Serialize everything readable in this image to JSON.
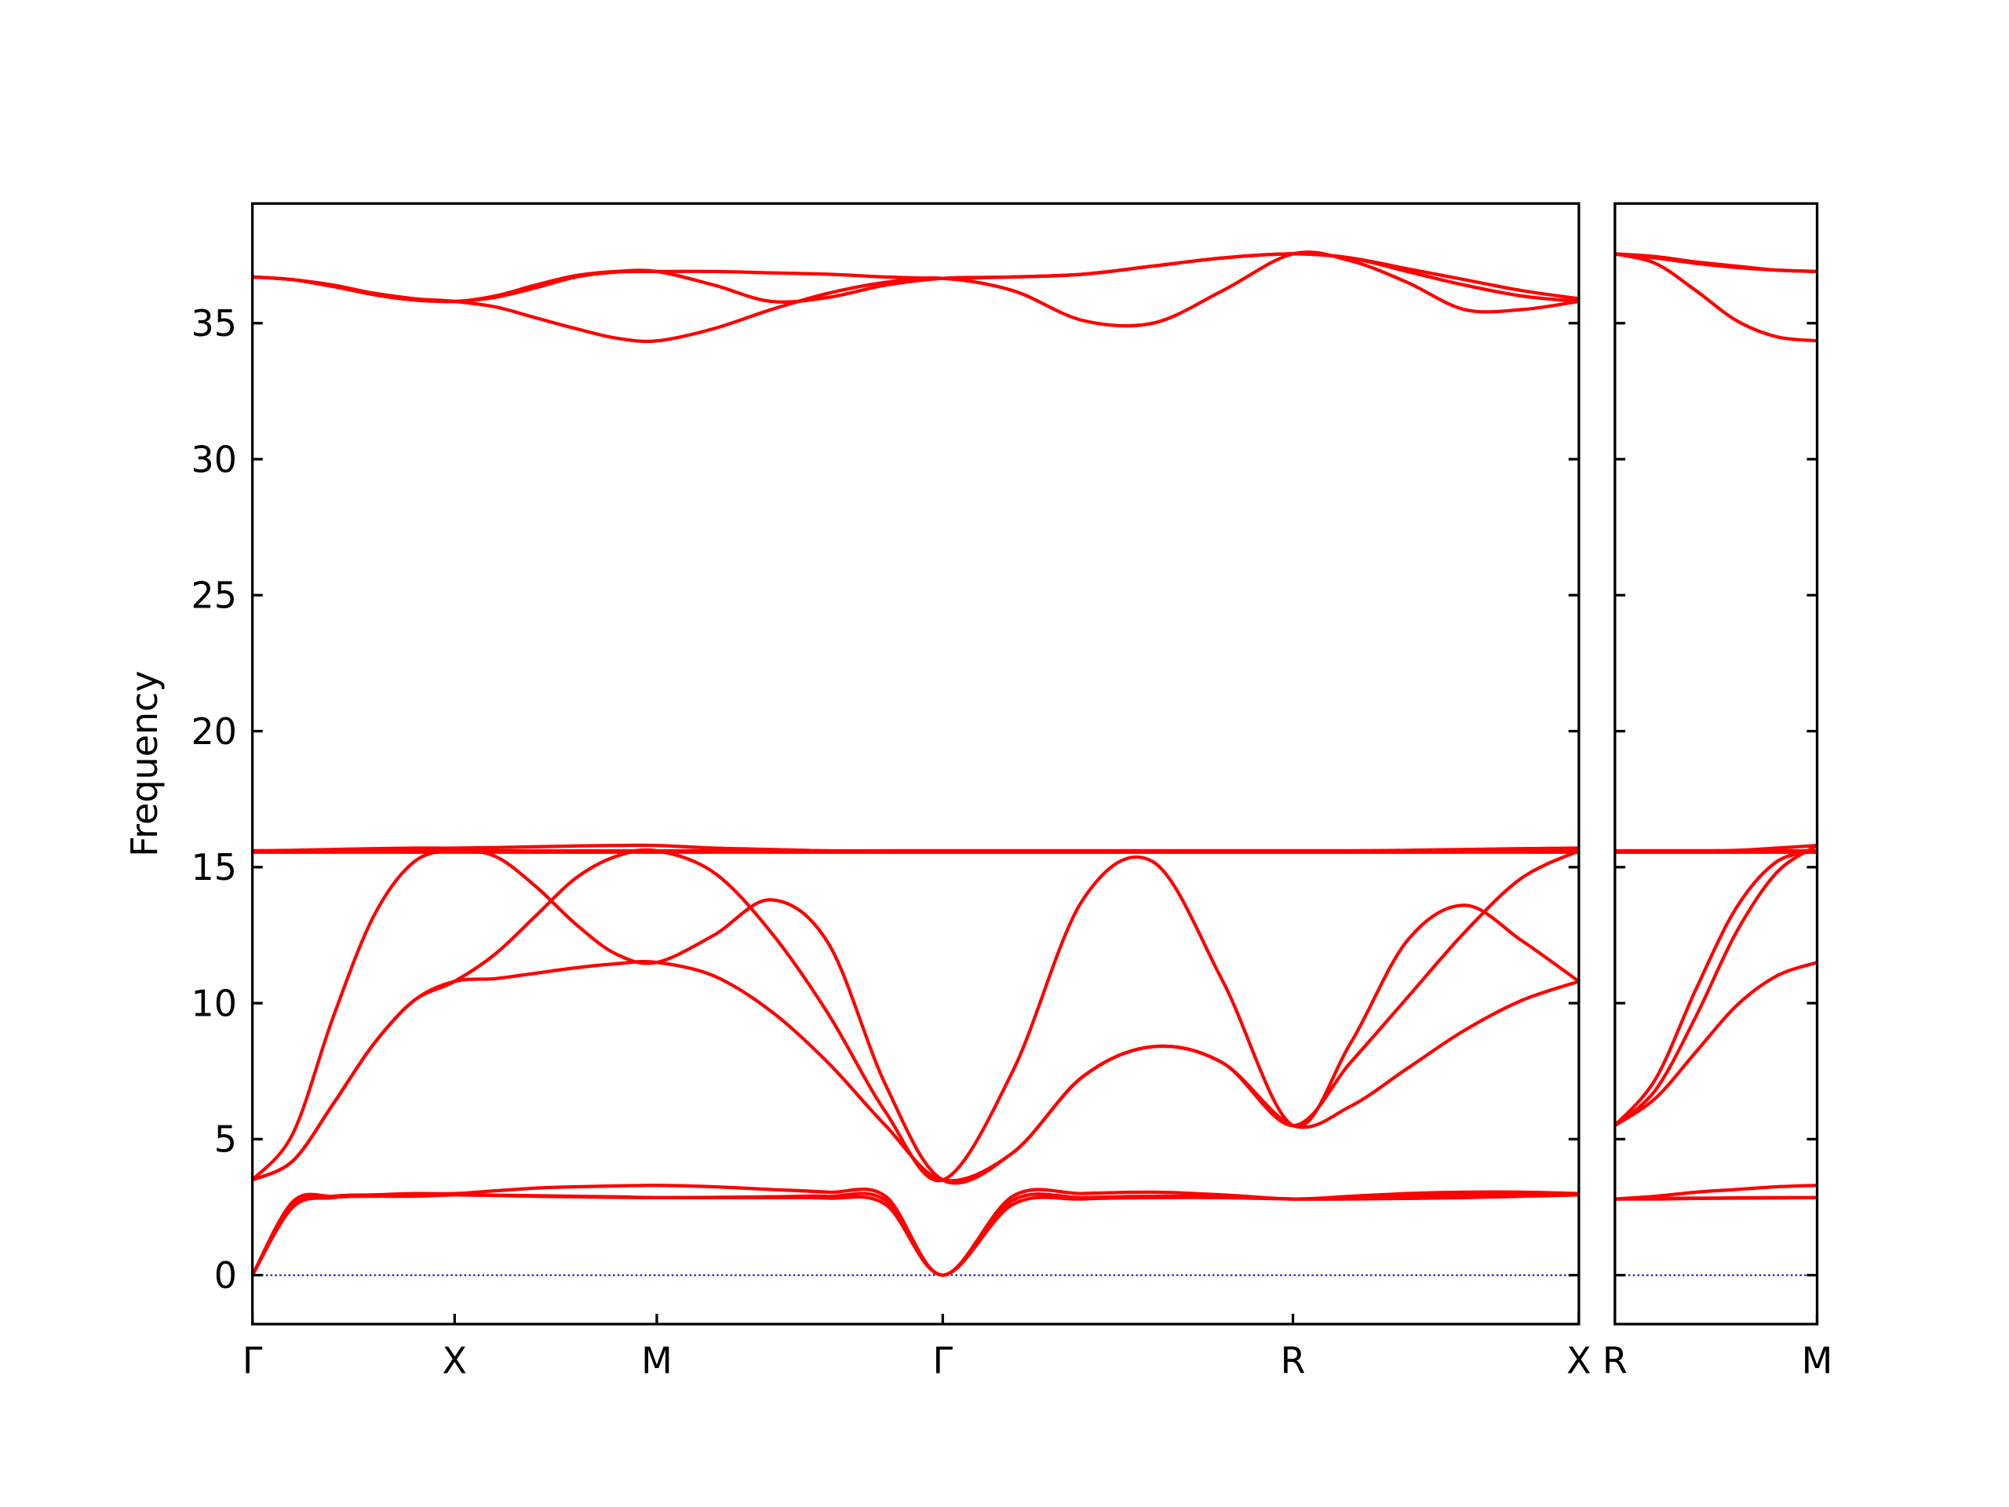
{
  "chart_data": [
    {
      "type": "line",
      "ylabel": "Frequency",
      "color": "#ff0000",
      "x": [
        0,
        0.1,
        0.2,
        0.3,
        0.4,
        0.5,
        0.6,
        0.7,
        0.8,
        0.9,
        1.0,
        1.1414,
        1.2828,
        1.4243,
        1.5657,
        1.7071,
        1.8803,
        2.0535,
        2.2267,
        2.3999,
        2.5731,
        2.7145,
        2.8559,
        2.9974,
        3.1388,
        3.2802
      ],
      "xlim": [
        0,
        3.2802
      ],
      "xticks": [
        {
          "value": 0,
          "label": "Γ"
        },
        {
          "value": 0.5,
          "label": "X"
        },
        {
          "value": 1.0,
          "label": "M"
        },
        {
          "value": 1.7071,
          "label": "Γ"
        },
        {
          "value": 2.5731,
          "label": "R"
        },
        {
          "value": 3.2802,
          "label": "X"
        }
      ],
      "ylim": [
        -1.8,
        39.4
      ],
      "yticks": [
        0,
        5,
        10,
        15,
        20,
        25,
        30,
        35
      ],
      "ytick_labels": true,
      "hline": {
        "y": 0,
        "color": "#0000cc"
      },
      "series": [
        {
          "values": [
            0,
            2.5,
            2.85,
            2.9,
            2.9,
            2.95,
            2.93,
            2.9,
            2.88,
            2.86,
            2.85,
            2.85,
            2.85,
            2.83,
            2.6,
            0,
            2.6,
            2.8,
            2.85,
            2.85,
            2.8,
            2.8,
            2.82,
            2.85,
            2.9,
            2.95
          ]
        },
        {
          "values": [
            0,
            2.6,
            2.9,
            2.95,
            2.95,
            2.95,
            2.94,
            2.92,
            2.9,
            2.88,
            2.85,
            2.86,
            2.88,
            2.9,
            2.75,
            0,
            2.75,
            2.85,
            2.9,
            2.88,
            2.8,
            2.85,
            2.9,
            2.95,
            2.95,
            2.95
          ]
        },
        {
          "values": [
            0,
            2.7,
            2.9,
            2.95,
            3.0,
            3.0,
            3.1,
            3.2,
            3.25,
            3.28,
            3.3,
            3.25,
            3.15,
            3.05,
            2.9,
            0,
            2.9,
            3.0,
            3.05,
            2.95,
            2.8,
            2.9,
            3.0,
            3.05,
            3.05,
            3.0
          ]
        },
        {
          "values": [
            3.5,
            4.2,
            6.3,
            8.5,
            10.1,
            10.8,
            10.9,
            11.1,
            11.3,
            11.45,
            11.5,
            11.0,
            9.7,
            7.8,
            5.5,
            3.5,
            4.5,
            7.3,
            8.4,
            7.8,
            5.5,
            6.2,
            7.6,
            9.0,
            10.1,
            10.8
          ]
        },
        {
          "values": [
            3.5,
            4.2,
            6.3,
            8.5,
            10.1,
            10.8,
            11.8,
            13.2,
            14.6,
            15.4,
            15.6,
            14.8,
            12.6,
            9.6,
            6.0,
            3.5,
            7.5,
            13.8,
            15.2,
            10.8,
            5.5,
            8.5,
            12.3,
            13.6,
            12.3,
            10.8
          ]
        },
        {
          "values": [
            3.5,
            5.2,
            9.5,
            13.2,
            15.2,
            15.6,
            15.4,
            14.3,
            12.9,
            11.8,
            11.5,
            12.5,
            13.8,
            12.2,
            7.0,
            3.5,
            4.5,
            7.3,
            8.4,
            7.8,
            5.5,
            7.8,
            10.2,
            12.6,
            14.6,
            15.6
          ]
        },
        {
          "values": [
            15.6,
            15.6,
            15.6,
            15.6,
            15.6,
            15.6,
            15.6,
            15.6,
            15.6,
            15.6,
            15.6,
            15.6,
            15.6,
            15.6,
            15.6,
            15.6,
            15.6,
            15.6,
            15.6,
            15.6,
            15.6,
            15.6,
            15.6,
            15.6,
            15.6,
            15.6
          ]
        },
        {
          "values": [
            15.6,
            15.62,
            15.65,
            15.68,
            15.7,
            15.7,
            15.72,
            15.75,
            15.78,
            15.8,
            15.8,
            15.7,
            15.65,
            15.6,
            15.6,
            15.6,
            15.6,
            15.6,
            15.6,
            15.6,
            15.6,
            15.6,
            15.62,
            15.65,
            15.68,
            15.7
          ]
        },
        {
          "values": [
            15.55,
            15.55,
            15.55,
            15.55,
            15.55,
            15.55,
            15.55,
            15.55,
            15.55,
            15.55,
            15.55,
            15.55,
            15.55,
            15.55,
            15.55,
            15.55,
            15.55,
            15.55,
            15.55,
            15.55,
            15.55,
            15.55,
            15.55,
            15.55,
            15.55,
            15.55
          ]
        },
        {
          "values": [
            36.7,
            36.6,
            36.35,
            36.1,
            35.9,
            35.8,
            35.6,
            35.2,
            34.8,
            34.45,
            34.35,
            34.8,
            35.5,
            36.1,
            36.5,
            36.65,
            36.2,
            35.1,
            35.0,
            36.2,
            37.55,
            37.3,
            36.5,
            35.5,
            35.5,
            35.8
          ]
        },
        {
          "values": [
            36.7,
            36.6,
            36.4,
            36.1,
            35.9,
            35.8,
            36.0,
            36.4,
            36.75,
            36.9,
            36.9,
            36.4,
            35.8,
            35.95,
            36.4,
            36.65,
            36.7,
            36.8,
            37.1,
            37.4,
            37.55,
            37.4,
            37.0,
            36.6,
            36.2,
            35.9
          ]
        },
        {
          "values": [
            36.7,
            36.6,
            36.35,
            36.05,
            35.85,
            35.8,
            35.95,
            36.3,
            36.7,
            36.88,
            36.9,
            36.9,
            36.85,
            36.8,
            36.7,
            36.65,
            36.7,
            36.8,
            37.1,
            37.4,
            37.55,
            37.4,
            36.9,
            36.4,
            36.0,
            35.8
          ]
        }
      ]
    },
    {
      "type": "line",
      "color": "#ff0000",
      "x": [
        0,
        0.1,
        0.2,
        0.3,
        0.4,
        0.5
      ],
      "xlim": [
        0,
        0.5
      ],
      "xticks": [
        {
          "value": 0,
          "label": "R"
        },
        {
          "value": 0.5,
          "label": "M"
        }
      ],
      "ylim": [
        -1.8,
        39.4
      ],
      "yticks": [
        0,
        5,
        10,
        15,
        20,
        25,
        30,
        35
      ],
      "ytick_labels": false,
      "hline": {
        "y": 0,
        "color": "#0000cc"
      },
      "series": [
        {
          "values": [
            2.8,
            2.8,
            2.82,
            2.83,
            2.84,
            2.85
          ]
        },
        {
          "values": [
            2.8,
            2.82,
            2.83,
            2.84,
            2.85,
            2.85
          ]
        },
        {
          "values": [
            2.8,
            2.9,
            3.05,
            3.15,
            3.25,
            3.3
          ]
        },
        {
          "values": [
            5.5,
            6.5,
            8.2,
            9.9,
            11.0,
            11.5
          ]
        },
        {
          "values": [
            5.5,
            7.2,
            10.5,
            13.5,
            15.2,
            15.6
          ]
        },
        {
          "values": [
            5.5,
            6.8,
            9.5,
            12.6,
            14.8,
            15.8
          ]
        },
        {
          "values": [
            15.6,
            15.6,
            15.6,
            15.6,
            15.6,
            15.6
          ]
        },
        {
          "values": [
            15.6,
            15.6,
            15.6,
            15.62,
            15.7,
            15.8
          ]
        },
        {
          "values": [
            15.55,
            15.55,
            15.55,
            15.55,
            15.55,
            15.55
          ]
        },
        {
          "values": [
            37.55,
            37.2,
            36.2,
            35.1,
            34.5,
            34.35
          ]
        },
        {
          "values": [
            37.55,
            37.4,
            37.2,
            37.05,
            36.95,
            36.9
          ]
        },
        {
          "values": [
            37.55,
            37.45,
            37.25,
            37.1,
            36.95,
            36.9
          ]
        }
      ]
    }
  ]
}
